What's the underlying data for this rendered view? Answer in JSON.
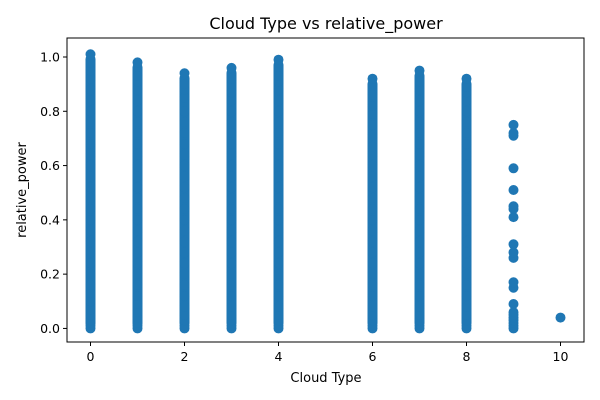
{
  "chart_data": {
    "type": "scatter",
    "title": "Cloud Type vs relative_power",
    "xlabel": "Cloud Type",
    "ylabel": "relative_power",
    "xlim": [
      -0.5,
      10.5
    ],
    "ylim": [
      -0.05,
      1.07
    ],
    "xticks": [
      0,
      2,
      4,
      6,
      8,
      10
    ],
    "yticks": [
      0.0,
      0.2,
      0.4,
      0.6,
      0.8,
      1.0
    ],
    "ytick_labels": [
      "0.0",
      "0.2",
      "0.4",
      "0.6",
      "0.8",
      "1.0"
    ],
    "grid": false,
    "color": "#1f77b4",
    "series": [
      {
        "x": 0,
        "min": 0.0,
        "max": 1.01,
        "points": [
          0.0,
          0.01,
          0.02,
          0.03,
          0.05,
          0.07,
          0.1,
          0.13,
          0.16,
          0.2,
          0.24,
          0.28,
          0.32,
          0.36,
          0.4,
          0.44,
          0.48,
          0.52,
          0.56,
          0.6,
          0.64,
          0.68,
          0.72,
          0.76,
          0.8,
          0.84,
          0.88,
          0.92,
          0.95,
          0.98,
          1.01
        ]
      },
      {
        "x": 1,
        "min": 0.0,
        "max": 0.98,
        "points": [
          0.0,
          0.01,
          0.02,
          0.04,
          0.06,
          0.09,
          0.12,
          0.16,
          0.2,
          0.24,
          0.28,
          0.32,
          0.36,
          0.4,
          0.44,
          0.48,
          0.52,
          0.56,
          0.6,
          0.64,
          0.68,
          0.72,
          0.76,
          0.8,
          0.84,
          0.88,
          0.91,
          0.93,
          0.98
        ]
      },
      {
        "x": 2,
        "min": 0.0,
        "max": 0.94,
        "points": [
          0.0,
          0.01,
          0.03,
          0.05,
          0.08,
          0.12,
          0.16,
          0.2,
          0.24,
          0.28,
          0.32,
          0.36,
          0.4,
          0.44,
          0.48,
          0.52,
          0.56,
          0.6,
          0.64,
          0.68,
          0.72,
          0.76,
          0.8,
          0.85,
          0.88,
          0.9,
          0.94
        ]
      },
      {
        "x": 3,
        "min": 0.0,
        "max": 0.96,
        "points": [
          0.0,
          0.01,
          0.03,
          0.05,
          0.08,
          0.12,
          0.16,
          0.2,
          0.24,
          0.28,
          0.32,
          0.36,
          0.4,
          0.44,
          0.48,
          0.52,
          0.56,
          0.6,
          0.64,
          0.68,
          0.72,
          0.76,
          0.8,
          0.84,
          0.87,
          0.9,
          0.92,
          0.96
        ]
      },
      {
        "x": 4,
        "min": 0.0,
        "max": 0.99,
        "points": [
          0.0,
          0.01,
          0.03,
          0.05,
          0.08,
          0.12,
          0.16,
          0.2,
          0.24,
          0.28,
          0.32,
          0.36,
          0.4,
          0.44,
          0.48,
          0.52,
          0.56,
          0.6,
          0.64,
          0.68,
          0.72,
          0.76,
          0.8,
          0.84,
          0.88,
          0.91,
          0.93,
          0.99
        ]
      },
      {
        "x": 6,
        "min": 0.0,
        "max": 0.92,
        "points": [
          0.0,
          0.01,
          0.03,
          0.05,
          0.08,
          0.12,
          0.16,
          0.2,
          0.24,
          0.28,
          0.32,
          0.36,
          0.4,
          0.44,
          0.48,
          0.52,
          0.56,
          0.6,
          0.64,
          0.67,
          0.71,
          0.75,
          0.79,
          0.82,
          0.86,
          0.92
        ]
      },
      {
        "x": 7,
        "min": 0.0,
        "max": 0.95,
        "points": [
          0.0,
          0.01,
          0.03,
          0.05,
          0.08,
          0.12,
          0.16,
          0.2,
          0.24,
          0.28,
          0.32,
          0.36,
          0.4,
          0.44,
          0.48,
          0.52,
          0.56,
          0.6,
          0.64,
          0.68,
          0.72,
          0.76,
          0.8,
          0.84,
          0.88,
          0.91,
          0.95
        ]
      },
      {
        "x": 8,
        "min": 0.0,
        "max": 0.92,
        "points": [
          0.0,
          0.01,
          0.03,
          0.05,
          0.08,
          0.12,
          0.16,
          0.2,
          0.24,
          0.28,
          0.32,
          0.36,
          0.4,
          0.44,
          0.48,
          0.52,
          0.56,
          0.6,
          0.64,
          0.68,
          0.72,
          0.76,
          0.8,
          0.84,
          0.87,
          0.89,
          0.92
        ]
      },
      {
        "x": 9,
        "points": [
          0.0,
          0.01,
          0.02,
          0.03,
          0.04,
          0.05,
          0.06,
          0.09,
          0.15,
          0.17,
          0.26,
          0.28,
          0.31,
          0.41,
          0.44,
          0.45,
          0.51,
          0.59,
          0.71,
          0.72,
          0.75
        ]
      },
      {
        "x": 10,
        "points": [
          0.04
        ]
      }
    ]
  }
}
